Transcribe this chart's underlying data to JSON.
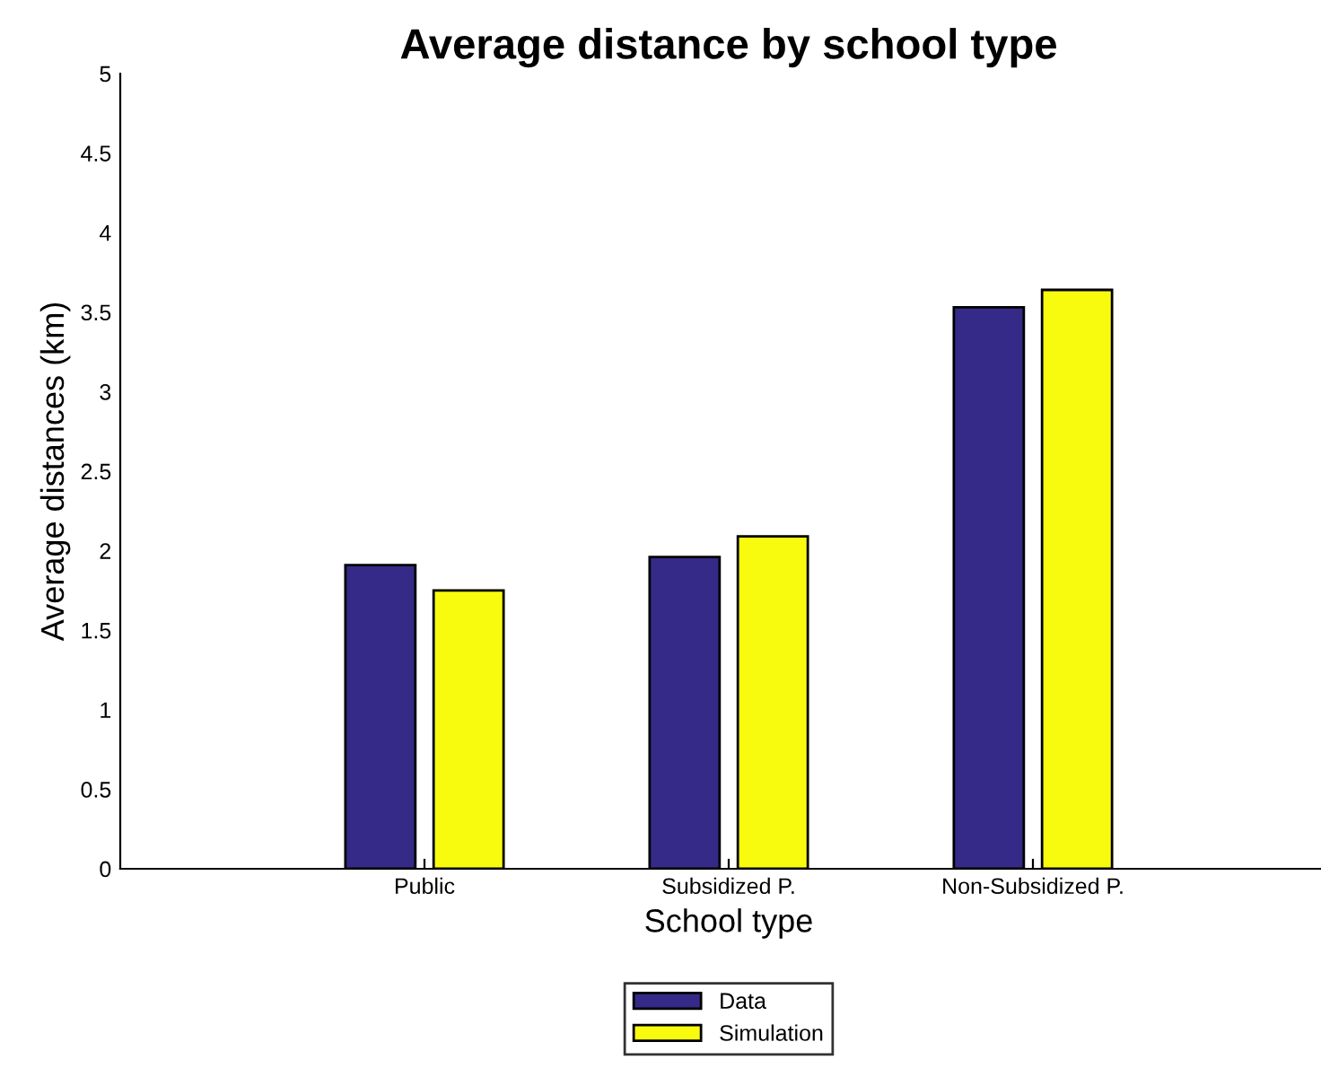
{
  "chart_data": {
    "type": "bar",
    "title": "Average distance by school type",
    "xlabel": "School type",
    "ylabel": "Average distances (km)",
    "categories": [
      "Public",
      "Subsidized P.",
      "Non-Subsidized P."
    ],
    "series": [
      {
        "name": "Data",
        "color": "#352a87",
        "values": [
          1.91,
          1.96,
          3.53
        ]
      },
      {
        "name": "Simulation",
        "color": "#f9fb0e",
        "values": [
          1.75,
          2.09,
          3.64
        ]
      }
    ],
    "ylim": [
      0,
      5
    ],
    "yticks": [
      0,
      0.5,
      1,
      1.5,
      2,
      2.5,
      3,
      3.5,
      4,
      4.5,
      5
    ],
    "grid": false,
    "legend": "bottom"
  }
}
